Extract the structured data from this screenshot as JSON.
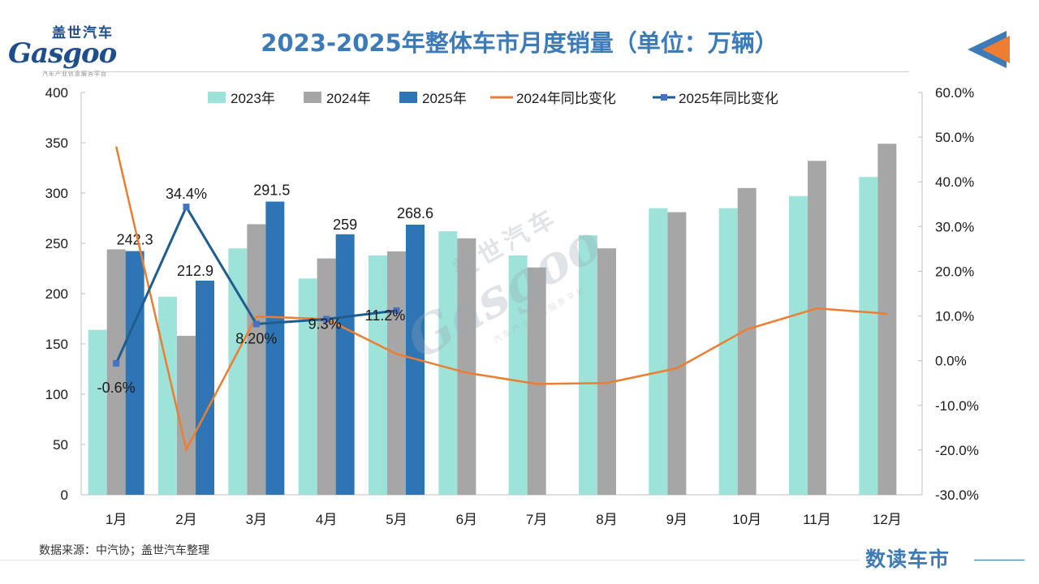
{
  "header": {
    "logo_cn": "盖世汽车",
    "logo_en": "Gasgoo",
    "logo_sub": "汽车产业信息服务平台",
    "title": "2023-2025年整体车市月度销量（单位：万辆）"
  },
  "footer": {
    "source": "数据来源：中汽协；盖世汽车整理",
    "brand": "数读车市"
  },
  "watermark": {
    "cn": "盖世汽车",
    "en": "Gasgoo",
    "sub": "汽车产业信息服务平台"
  },
  "colors": {
    "s2023": "#9ee3d9",
    "s2024": "#a6a6a6",
    "s2025": "#2e75b6",
    "l2024": "#ed7d31",
    "l2025": "#1f5c8f",
    "title": "#3d7ab8"
  },
  "chart_data": {
    "type": "bar",
    "categories": [
      "1月",
      "2月",
      "3月",
      "4月",
      "5月",
      "6月",
      "7月",
      "8月",
      "9月",
      "10月",
      "11月",
      "12月"
    ],
    "series": [
      {
        "name": "2023年",
        "type": "bar",
        "axis": "left",
        "values": [
          164,
          197,
          245,
          215,
          238,
          262,
          238,
          258,
          285,
          285,
          297,
          316
        ]
      },
      {
        "name": "2024年",
        "type": "bar",
        "axis": "left",
        "values": [
          244,
          158,
          269,
          235,
          242,
          255,
          226,
          245,
          281,
          305,
          332,
          349
        ]
      },
      {
        "name": "2025年",
        "type": "bar",
        "axis": "left",
        "values": [
          242.3,
          212.9,
          291.5,
          259,
          268.6,
          null,
          null,
          null,
          null,
          null,
          null,
          null
        ],
        "labels": [
          "242.3",
          "212.9",
          "291.5",
          "259",
          "268.6"
        ]
      },
      {
        "name": "2024年同比变化",
        "type": "line",
        "axis": "right",
        "values": [
          47.9,
          -19.9,
          9.9,
          9.3,
          1.5,
          -2.7,
          -5.2,
          -5.0,
          -1.7,
          7.0,
          11.7,
          10.5
        ]
      },
      {
        "name": "2025年同比变化",
        "type": "line",
        "axis": "right",
        "values": [
          -0.6,
          34.4,
          8.2,
          9.3,
          11.2,
          null,
          null,
          null,
          null,
          null,
          null,
          null
        ],
        "labels": [
          "-0.6%",
          "34.4%",
          "8.20%",
          "9.3%",
          "11.2%"
        ]
      }
    ],
    "y_left": {
      "min": 0,
      "max": 400,
      "step": 50,
      "ticks": [
        "0",
        "50",
        "100",
        "150",
        "200",
        "250",
        "300",
        "350",
        "400"
      ]
    },
    "y_right": {
      "min": -30,
      "max": 60,
      "step": 10,
      "ticks": [
        "-30.0%",
        "-20.0%",
        "-10.0%",
        "0.0%",
        "10.0%",
        "20.0%",
        "30.0%",
        "40.0%",
        "50.0%",
        "60.0%"
      ]
    },
    "grid": false,
    "legend_position": "top"
  }
}
